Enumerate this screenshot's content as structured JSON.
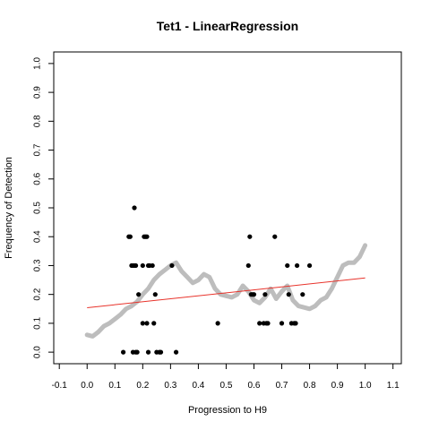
{
  "chart_data": {
    "type": "scatter",
    "title": "Tet1 - LinearRegression",
    "xlabel": "Progression to H9",
    "ylabel": "Frequency of Detection",
    "xlim": [
      -0.12,
      1.13
    ],
    "ylim": [
      -0.04,
      1.04
    ],
    "xticks": [
      -0.1,
      0.0,
      0.1,
      0.2,
      0.3,
      0.4,
      0.5,
      0.6,
      0.7,
      0.8,
      0.9,
      1.0,
      1.1
    ],
    "xtick_labels": [
      "-0.1",
      "0.0",
      "0.1",
      "0.2",
      "0.3",
      "0.4",
      "0.5",
      "0.6",
      "0.7",
      "0.8",
      "0.9",
      "1.0",
      "1.1"
    ],
    "yticks": [
      0.0,
      0.1,
      0.2,
      0.3,
      0.4,
      0.5,
      0.6,
      0.7,
      0.8,
      0.9,
      1.0
    ],
    "ytick_labels": [
      "0.0",
      "0.1",
      "0.2",
      "0.3",
      "0.4",
      "0.5",
      "0.6",
      "0.7",
      "0.8",
      "0.9",
      "1.0"
    ],
    "grid": false,
    "colors": {
      "points": "#000000",
      "smooth": "#bdbdbd",
      "regression": "#e8332b"
    },
    "points": [
      [
        0.13,
        0.0
      ],
      [
        0.15,
        0.4
      ],
      [
        0.155,
        0.4
      ],
      [
        0.16,
        0.3
      ],
      [
        0.165,
        0.3
      ],
      [
        0.165,
        0.0
      ],
      [
        0.17,
        0.5
      ],
      [
        0.17,
        0.3
      ],
      [
        0.175,
        0.0
      ],
      [
        0.175,
        0.3
      ],
      [
        0.18,
        0.0
      ],
      [
        0.185,
        0.2
      ],
      [
        0.2,
        0.1
      ],
      [
        0.2,
        0.3
      ],
      [
        0.205,
        0.4
      ],
      [
        0.21,
        0.4
      ],
      [
        0.215,
        0.4
      ],
      [
        0.215,
        0.1
      ],
      [
        0.22,
        0.0
      ],
      [
        0.22,
        0.3
      ],
      [
        0.225,
        0.3
      ],
      [
        0.235,
        0.3
      ],
      [
        0.24,
        0.1
      ],
      [
        0.245,
        0.2
      ],
      [
        0.25,
        0.0
      ],
      [
        0.26,
        0.0
      ],
      [
        0.265,
        0.0
      ],
      [
        0.305,
        0.3
      ],
      [
        0.32,
        0.0
      ],
      [
        0.47,
        0.1
      ],
      [
        0.58,
        0.3
      ],
      [
        0.585,
        0.4
      ],
      [
        0.59,
        0.2
      ],
      [
        0.595,
        0.2
      ],
      [
        0.6,
        0.2
      ],
      [
        0.62,
        0.1
      ],
      [
        0.635,
        0.1
      ],
      [
        0.64,
        0.2
      ],
      [
        0.645,
        0.1
      ],
      [
        0.65,
        0.1
      ],
      [
        0.675,
        0.4
      ],
      [
        0.7,
        0.1
      ],
      [
        0.72,
        0.3
      ],
      [
        0.725,
        0.2
      ],
      [
        0.735,
        0.1
      ],
      [
        0.745,
        0.1
      ],
      [
        0.75,
        0.1
      ],
      [
        0.755,
        0.3
      ],
      [
        0.775,
        0.2
      ],
      [
        0.8,
        0.3
      ]
    ],
    "smooth_curve": [
      [
        0.0,
        0.06
      ],
      [
        0.02,
        0.055
      ],
      [
        0.04,
        0.07
      ],
      [
        0.06,
        0.09
      ],
      [
        0.08,
        0.1
      ],
      [
        0.1,
        0.115
      ],
      [
        0.12,
        0.13
      ],
      [
        0.14,
        0.15
      ],
      [
        0.16,
        0.16
      ],
      [
        0.18,
        0.175
      ],
      [
        0.2,
        0.2
      ],
      [
        0.22,
        0.22
      ],
      [
        0.24,
        0.25
      ],
      [
        0.26,
        0.27
      ],
      [
        0.28,
        0.285
      ],
      [
        0.3,
        0.3
      ],
      [
        0.32,
        0.31
      ],
      [
        0.34,
        0.28
      ],
      [
        0.36,
        0.26
      ],
      [
        0.38,
        0.24
      ],
      [
        0.4,
        0.25
      ],
      [
        0.42,
        0.27
      ],
      [
        0.44,
        0.26
      ],
      [
        0.46,
        0.22
      ],
      [
        0.48,
        0.2
      ],
      [
        0.5,
        0.195
      ],
      [
        0.52,
        0.19
      ],
      [
        0.54,
        0.2
      ],
      [
        0.56,
        0.23
      ],
      [
        0.58,
        0.21
      ],
      [
        0.6,
        0.18
      ],
      [
        0.62,
        0.17
      ],
      [
        0.64,
        0.19
      ],
      [
        0.66,
        0.22
      ],
      [
        0.68,
        0.185
      ],
      [
        0.7,
        0.21
      ],
      [
        0.72,
        0.23
      ],
      [
        0.74,
        0.18
      ],
      [
        0.76,
        0.16
      ],
      [
        0.78,
        0.155
      ],
      [
        0.8,
        0.15
      ],
      [
        0.82,
        0.16
      ],
      [
        0.84,
        0.18
      ],
      [
        0.86,
        0.19
      ],
      [
        0.88,
        0.22
      ],
      [
        0.9,
        0.26
      ],
      [
        0.92,
        0.3
      ],
      [
        0.94,
        0.31
      ],
      [
        0.96,
        0.31
      ],
      [
        0.98,
        0.33
      ],
      [
        1.0,
        0.37
      ]
    ],
    "regression_line": [
      [
        0.0,
        0.154
      ],
      [
        1.0,
        0.257
      ]
    ]
  }
}
